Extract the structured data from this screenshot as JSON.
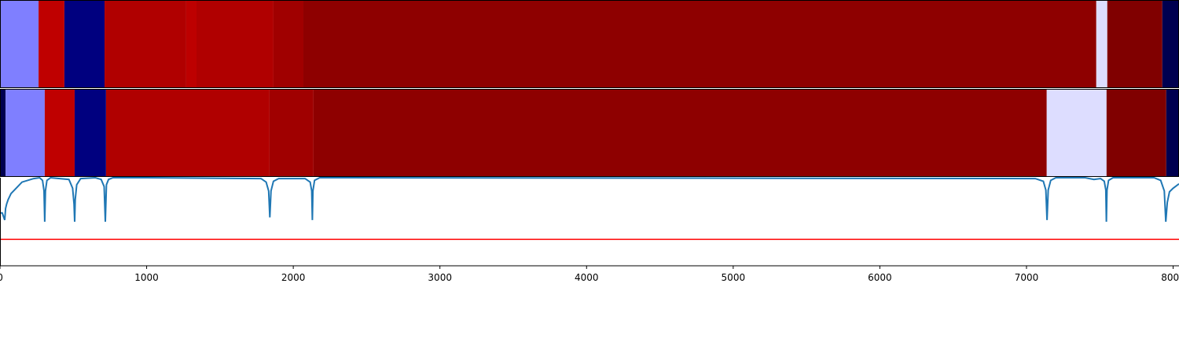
{
  "chart_data": {
    "type": "segments",
    "xlim": [
      0,
      8040
    ],
    "xticks": [
      0,
      1000,
      2000,
      3000,
      4000,
      5000,
      6000,
      7000,
      8000
    ],
    "rows": [
      {
        "segments": [
          {
            "start": 0,
            "end": 263,
            "color": "#7f7fff"
          },
          {
            "start": 263,
            "end": 439,
            "color": "#bf0000"
          },
          {
            "start": 439,
            "end": 713,
            "color": "#00007f"
          },
          {
            "start": 713,
            "end": 1270,
            "color": "#b00000"
          },
          {
            "start": 1270,
            "end": 1340,
            "color": "#bd0000"
          },
          {
            "start": 1340,
            "end": 1865,
            "color": "#b00000"
          },
          {
            "start": 1865,
            "end": 2069,
            "color": "#a00000"
          },
          {
            "start": 2069,
            "end": 7476,
            "color": "#8e0000"
          },
          {
            "start": 7476,
            "end": 7551,
            "color": "#ddddff"
          },
          {
            "start": 7551,
            "end": 7926,
            "color": "#800000"
          },
          {
            "start": 7926,
            "end": 8040,
            "color": "#000050"
          }
        ]
      },
      {
        "segments": [
          {
            "start": 0,
            "end": 38,
            "color": "#000050"
          },
          {
            "start": 38,
            "end": 305,
            "color": "#7f7fff"
          },
          {
            "start": 305,
            "end": 509,
            "color": "#bf0000"
          },
          {
            "start": 509,
            "end": 723,
            "color": "#00007f"
          },
          {
            "start": 723,
            "end": 1838,
            "color": "#b00000"
          },
          {
            "start": 1838,
            "end": 2138,
            "color": "#a00000"
          },
          {
            "start": 2138,
            "end": 7138,
            "color": "#8e0000"
          },
          {
            "start": 7138,
            "end": 7546,
            "color": "#ddddff"
          },
          {
            "start": 7546,
            "end": 7953,
            "color": "#800000"
          },
          {
            "start": 7953,
            "end": 8040,
            "color": "#000050"
          }
        ]
      }
    ],
    "line": {
      "color": "#1f77b4",
      "ylim": [
        0,
        1
      ],
      "x": [
        0,
        15,
        32,
        38,
        45,
        55,
        75,
        110,
        150,
        230,
        270,
        290,
        300,
        305,
        310,
        320,
        345,
        470,
        495,
        505,
        509,
        513,
        523,
        550,
        650,
        690,
        710,
        718,
        726,
        740,
        770,
        1000,
        1780,
        1815,
        1832,
        1840,
        1848,
        1865,
        1900,
        2080,
        2115,
        2126,
        2130,
        2134,
        2145,
        2180,
        2400,
        7060,
        7115,
        7132,
        7140,
        7148,
        7165,
        7200,
        7400,
        7460,
        7505,
        7530,
        7541,
        7545,
        7549,
        7560,
        7590,
        7870,
        7915,
        7940,
        7950,
        7960,
        7975,
        8000,
        8040
      ],
      "values": [
        0.6,
        0.6,
        0.52,
        0.65,
        0.7,
        0.75,
        0.82,
        0.88,
        0.95,
        0.99,
        1.0,
        0.97,
        0.85,
        0.5,
        0.85,
        0.97,
        1.0,
        0.98,
        0.88,
        0.7,
        0.5,
        0.75,
        0.92,
        0.99,
        1.0,
        0.98,
        0.9,
        0.5,
        0.92,
        0.98,
        1.0,
        1.0,
        0.99,
        0.95,
        0.85,
        0.55,
        0.85,
        0.96,
        0.99,
        0.99,
        0.95,
        0.85,
        0.52,
        0.85,
        0.97,
        1.0,
        1.0,
        0.99,
        0.96,
        0.86,
        0.52,
        0.86,
        0.97,
        1.0,
        1.0,
        0.98,
        0.99,
        0.96,
        0.86,
        0.5,
        0.86,
        0.97,
        1.0,
        1.0,
        0.97,
        0.85,
        0.5,
        0.72,
        0.84,
        0.88,
        0.93
      ],
      "threshold": 0.3,
      "threshold_color": "#ff0000"
    }
  }
}
